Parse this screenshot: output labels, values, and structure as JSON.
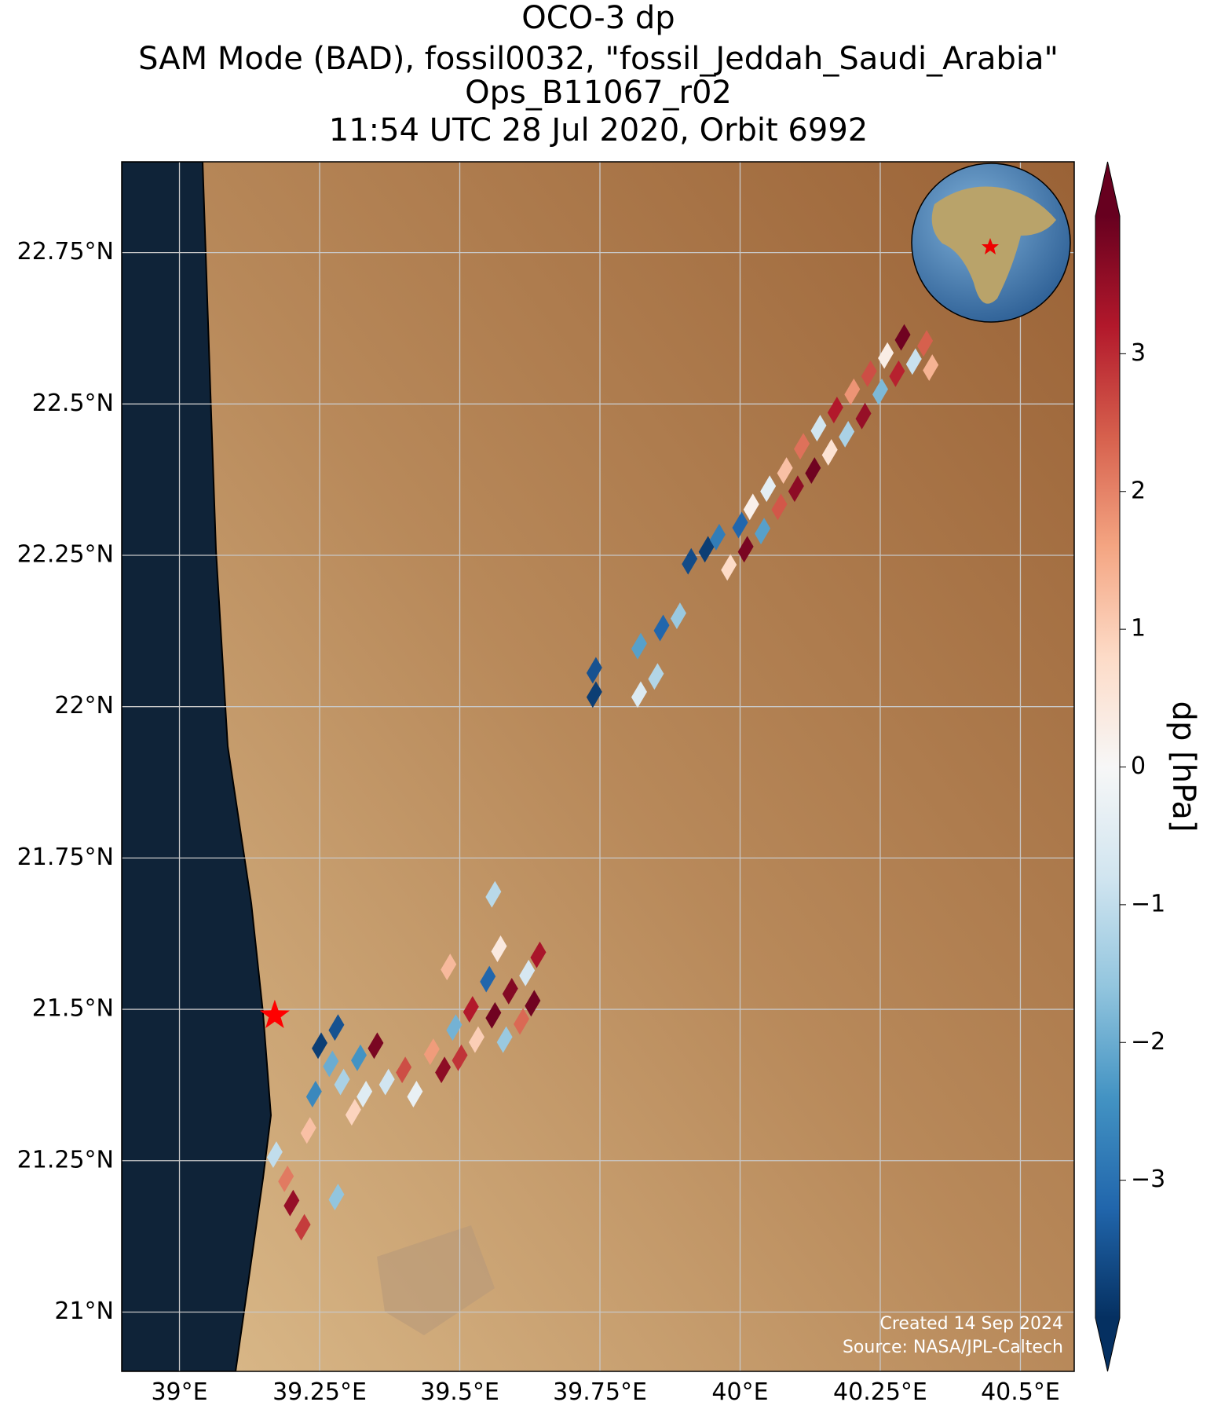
{
  "chart_data": {
    "type": "map",
    "title": [
      "OCO-3 dp",
      "SAM Mode (BAD), fossil0032, \"fossil_Jeddah_Saudi_Arabia\"",
      "Ops_B11067_r02",
      "11:54 UTC 28 Jul 2020, Orbit 6992"
    ],
    "credits": [
      "Source: NASA/JPL-Caltech",
      "Created 14 Sep 2024"
    ],
    "colorbar_label": "dp [hPa]",
    "xlim": [
      38.897,
      40.596
    ],
    "ylim": [
      20.902,
      22.9
    ],
    "xticks": [
      {
        "value": 39,
        "label": "39°E"
      },
      {
        "value": 39.25,
        "label": "39.25°E"
      },
      {
        "value": 39.5,
        "label": "39.5°E"
      },
      {
        "value": 39.75,
        "label": "39.75°E"
      },
      {
        "value": 40,
        "label": "40°E"
      },
      {
        "value": 40.25,
        "label": "40.25°E"
      },
      {
        "value": 40.5,
        "label": "40.5°E"
      }
    ],
    "yticks": [
      {
        "value": 21,
        "label": "21°N"
      },
      {
        "value": 21.25,
        "label": "21.25°N"
      },
      {
        "value": 21.5,
        "label": "21.5°N"
      },
      {
        "value": 21.75,
        "label": "21.75°N"
      },
      {
        "value": 22,
        "label": "22°N"
      },
      {
        "value": 22.25,
        "label": "22.25°N"
      },
      {
        "value": 22.5,
        "label": "22.5°N"
      },
      {
        "value": 22.75,
        "label": "22.75°N"
      }
    ],
    "grid": true,
    "clim": [
      -4,
      4
    ],
    "cticks": [
      {
        "value": -3,
        "label": "−3"
      },
      {
        "value": -2,
        "label": "−2"
      },
      {
        "value": -1,
        "label": "−1"
      },
      0,
      1,
      2,
      3
    ],
    "colors": [
      "#053061",
      "#2166ac",
      "#4393c3",
      "#92c5de",
      "#d1e5f0",
      "#f7f7f7",
      "#fddbc7",
      "#f4a582",
      "#d6604d",
      "#b2182b",
      "#67001f"
    ],
    "site": {
      "x": 39.17,
      "y": 21.49,
      "color": "#ff0000"
    },
    "x": [
      39.74,
      39.74,
      39.82,
      39.85,
      39.82,
      39.86,
      39.89,
      39.91,
      39.94,
      39.96,
      39.98,
      40.0,
      40.01,
      40.02,
      40.04,
      40.05,
      40.07,
      40.08,
      40.1,
      40.11,
      40.13,
      40.14,
      40.16,
      40.17,
      40.19,
      40.2,
      40.22,
      40.23,
      40.25,
      40.26,
      40.28,
      40.29,
      40.31,
      40.33,
      40.34,
      39.17,
      39.19,
      39.2,
      39.22,
      39.23,
      39.24,
      39.25,
      39.27,
      39.28,
      39.29,
      39.31,
      39.32,
      39.33,
      39.35,
      39.37,
      39.4,
      39.42,
      39.45,
      39.47,
      39.49,
      39.5,
      39.52,
      39.53,
      39.55,
      39.56,
      39.57,
      39.58,
      39.59,
      39.61,
      39.62,
      39.63,
      39.64,
      39.56,
      39.48,
      39.28
    ],
    "y": [
      22.06,
      22.02,
      22.02,
      22.05,
      22.1,
      22.13,
      22.15,
      22.24,
      22.26,
      22.28,
      22.23,
      22.3,
      22.26,
      22.33,
      22.29,
      22.36,
      22.33,
      22.39,
      22.36,
      22.43,
      22.39,
      22.46,
      22.42,
      22.49,
      22.45,
      22.52,
      22.48,
      22.55,
      22.52,
      22.58,
      22.55,
      22.61,
      22.57,
      22.6,
      22.56,
      21.26,
      21.22,
      21.18,
      21.14,
      21.3,
      21.36,
      21.44,
      21.41,
      21.47,
      21.38,
      21.33,
      21.42,
      21.36,
      21.44,
      21.38,
      21.4,
      21.36,
      21.43,
      21.4,
      21.47,
      21.42,
      21.5,
      21.45,
      21.55,
      21.49,
      21.6,
      21.45,
      21.53,
      21.48,
      21.56,
      21.51,
      21.59,
      21.69,
      21.57,
      21.19
    ],
    "values": [
      -3.5,
      -3.8,
      -0.6,
      -1.2,
      -2.2,
      -3.2,
      -1.5,
      -3.6,
      -3.8,
      -2.8,
      0.8,
      -3.2,
      3.8,
      0.2,
      -2.2,
      -0.4,
      2.5,
      1.2,
      3.6,
      2.2,
      3.9,
      -0.8,
      0.6,
      3.2,
      -1.3,
      1.8,
      3.5,
      2.6,
      -1.8,
      0.3,
      3.1,
      3.9,
      -0.9,
      2.4,
      1.4,
      -1.0,
      2.1,
      3.5,
      2.8,
      1.2,
      -2.6,
      -3.8,
      -2.0,
      -3.5,
      -1.3,
      0.9,
      -2.4,
      -0.5,
      3.8,
      -0.8,
      2.6,
      -0.3,
      1.7,
      3.6,
      -1.9,
      2.9,
      3.2,
      1.0,
      -3.2,
      3.9,
      0.4,
      -1.5,
      3.7,
      2.3,
      -0.7,
      3.9,
      3.3,
      -1.1,
      1.3,
      -1.6
    ]
  }
}
